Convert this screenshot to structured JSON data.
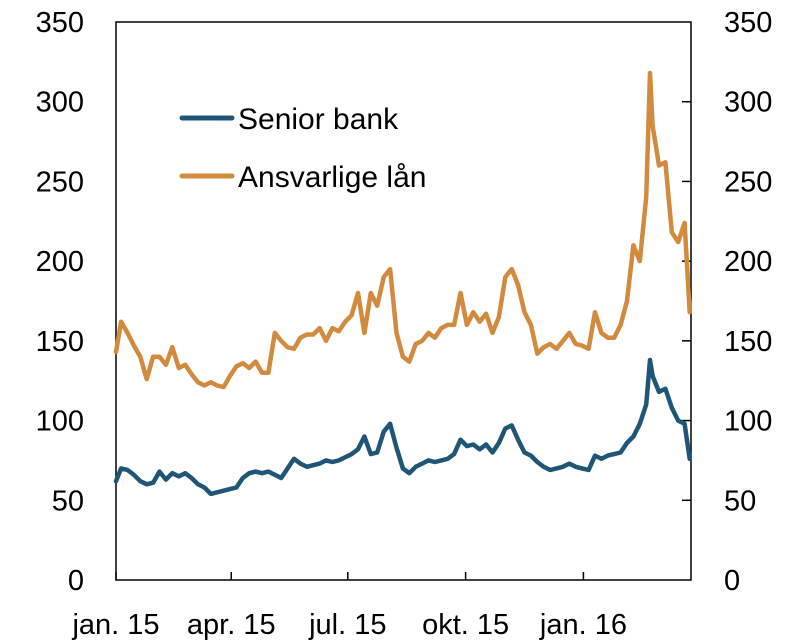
{
  "chart_data": {
    "type": "line",
    "title": "",
    "xlabel": "",
    "ylabel": "",
    "ylim": [
      0,
      350
    ],
    "yticks": [
      0,
      50,
      100,
      150,
      200,
      250,
      300,
      350
    ],
    "y2ticks": [
      0,
      50,
      100,
      150,
      200,
      250,
      300,
      350
    ],
    "xlim": [
      "2015-01-01",
      "2016-03-25"
    ],
    "xticks": [
      {
        "date": "2015-01-01",
        "label": "jan. 15"
      },
      {
        "date": "2015-04-01",
        "label": "apr. 15"
      },
      {
        "date": "2015-07-01",
        "label": "jul. 15"
      },
      {
        "date": "2015-10-01",
        "label": "okt. 15"
      },
      {
        "date": "2016-01-01",
        "label": "jan. 16"
      }
    ],
    "grid": false,
    "legend_position": "top-left",
    "series": [
      {
        "name": "Senior bank",
        "color": "#1f5576",
        "points": [
          [
            "2015-01-01",
            62
          ],
          [
            "2015-01-05",
            70
          ],
          [
            "2015-01-10",
            69
          ],
          [
            "2015-01-15",
            66
          ],
          [
            "2015-01-20",
            62
          ],
          [
            "2015-01-25",
            60
          ],
          [
            "2015-01-30",
            61
          ],
          [
            "2015-02-04",
            68
          ],
          [
            "2015-02-09",
            63
          ],
          [
            "2015-02-14",
            67
          ],
          [
            "2015-02-19",
            65
          ],
          [
            "2015-02-24",
            67
          ],
          [
            "2015-03-01",
            64
          ],
          [
            "2015-03-06",
            60
          ],
          [
            "2015-03-11",
            58
          ],
          [
            "2015-03-16",
            54
          ],
          [
            "2015-03-21",
            55
          ],
          [
            "2015-03-26",
            56
          ],
          [
            "2015-03-31",
            57
          ],
          [
            "2015-04-05",
            58
          ],
          [
            "2015-04-10",
            64
          ],
          [
            "2015-04-15",
            67
          ],
          [
            "2015-04-20",
            68
          ],
          [
            "2015-04-25",
            67
          ],
          [
            "2015-04-30",
            68
          ],
          [
            "2015-05-05",
            66
          ],
          [
            "2015-05-10",
            64
          ],
          [
            "2015-05-15",
            70
          ],
          [
            "2015-05-20",
            76
          ],
          [
            "2015-05-25",
            73
          ],
          [
            "2015-05-30",
            71
          ],
          [
            "2015-06-04",
            72
          ],
          [
            "2015-06-09",
            73
          ],
          [
            "2015-06-14",
            75
          ],
          [
            "2015-06-19",
            74
          ],
          [
            "2015-06-24",
            75
          ],
          [
            "2015-06-29",
            77
          ],
          [
            "2015-07-04",
            79
          ],
          [
            "2015-07-09",
            82
          ],
          [
            "2015-07-14",
            90
          ],
          [
            "2015-07-19",
            79
          ],
          [
            "2015-07-24",
            80
          ],
          [
            "2015-07-29",
            93
          ],
          [
            "2015-08-03",
            98
          ],
          [
            "2015-08-08",
            83
          ],
          [
            "2015-08-13",
            70
          ],
          [
            "2015-08-18",
            67
          ],
          [
            "2015-08-23",
            71
          ],
          [
            "2015-08-28",
            73
          ],
          [
            "2015-09-02",
            75
          ],
          [
            "2015-09-07",
            74
          ],
          [
            "2015-09-12",
            75
          ],
          [
            "2015-09-17",
            76
          ],
          [
            "2015-09-22",
            79
          ],
          [
            "2015-09-27",
            88
          ],
          [
            "2015-10-02",
            84
          ],
          [
            "2015-10-07",
            85
          ],
          [
            "2015-10-12",
            82
          ],
          [
            "2015-10-17",
            85
          ],
          [
            "2015-10-22",
            80
          ],
          [
            "2015-10-27",
            86
          ],
          [
            "2015-11-01",
            95
          ],
          [
            "2015-11-06",
            97
          ],
          [
            "2015-11-11",
            88
          ],
          [
            "2015-11-16",
            80
          ],
          [
            "2015-11-21",
            78
          ],
          [
            "2015-11-26",
            74
          ],
          [
            "2015-12-01",
            71
          ],
          [
            "2015-12-06",
            69
          ],
          [
            "2015-12-11",
            70
          ],
          [
            "2015-12-16",
            71
          ],
          [
            "2015-12-21",
            73
          ],
          [
            "2015-12-26",
            71
          ],
          [
            "2015-12-31",
            70
          ],
          [
            "2016-01-05",
            69
          ],
          [
            "2016-01-10",
            78
          ],
          [
            "2016-01-15",
            76
          ],
          [
            "2016-01-20",
            78
          ],
          [
            "2016-01-25",
            79
          ],
          [
            "2016-01-30",
            80
          ],
          [
            "2016-02-04",
            86
          ],
          [
            "2016-02-09",
            90
          ],
          [
            "2016-02-14",
            98
          ],
          [
            "2016-02-19",
            110
          ],
          [
            "2016-02-22",
            138
          ],
          [
            "2016-02-24",
            128
          ],
          [
            "2016-02-29",
            118
          ],
          [
            "2016-03-05",
            120
          ],
          [
            "2016-03-10",
            108
          ],
          [
            "2016-03-15",
            100
          ],
          [
            "2016-03-20",
            98
          ],
          [
            "2016-03-24",
            76
          ]
        ]
      },
      {
        "name": "Ansvarlige lån",
        "color": "#d18a3e",
        "points": [
          [
            "2015-01-01",
            143
          ],
          [
            "2015-01-05",
            162
          ],
          [
            "2015-01-10",
            155
          ],
          [
            "2015-01-15",
            147
          ],
          [
            "2015-01-20",
            140
          ],
          [
            "2015-01-25",
            126
          ],
          [
            "2015-01-30",
            140
          ],
          [
            "2015-02-04",
            140
          ],
          [
            "2015-02-09",
            135
          ],
          [
            "2015-02-14",
            146
          ],
          [
            "2015-02-19",
            133
          ],
          [
            "2015-02-24",
            135
          ],
          [
            "2015-03-01",
            129
          ],
          [
            "2015-03-06",
            124
          ],
          [
            "2015-03-11",
            122
          ],
          [
            "2015-03-16",
            124
          ],
          [
            "2015-03-21",
            122
          ],
          [
            "2015-03-26",
            121
          ],
          [
            "2015-03-31",
            128
          ],
          [
            "2015-04-05",
            134
          ],
          [
            "2015-04-10",
            136
          ],
          [
            "2015-04-15",
            133
          ],
          [
            "2015-04-20",
            137
          ],
          [
            "2015-04-25",
            130
          ],
          [
            "2015-04-30",
            130
          ],
          [
            "2015-05-05",
            155
          ],
          [
            "2015-05-10",
            150
          ],
          [
            "2015-05-15",
            146
          ],
          [
            "2015-05-20",
            145
          ],
          [
            "2015-05-25",
            152
          ],
          [
            "2015-05-30",
            154
          ],
          [
            "2015-06-04",
            154
          ],
          [
            "2015-06-09",
            158
          ],
          [
            "2015-06-14",
            150
          ],
          [
            "2015-06-19",
            158
          ],
          [
            "2015-06-24",
            156
          ],
          [
            "2015-06-29",
            162
          ],
          [
            "2015-07-04",
            166
          ],
          [
            "2015-07-09",
            180
          ],
          [
            "2015-07-14",
            155
          ],
          [
            "2015-07-19",
            180
          ],
          [
            "2015-07-24",
            172
          ],
          [
            "2015-07-29",
            190
          ],
          [
            "2015-08-03",
            195
          ],
          [
            "2015-08-08",
            155
          ],
          [
            "2015-08-13",
            140
          ],
          [
            "2015-08-18",
            137
          ],
          [
            "2015-08-23",
            148
          ],
          [
            "2015-08-28",
            150
          ],
          [
            "2015-09-02",
            155
          ],
          [
            "2015-09-07",
            152
          ],
          [
            "2015-09-12",
            158
          ],
          [
            "2015-09-17",
            160
          ],
          [
            "2015-09-22",
            160
          ],
          [
            "2015-09-27",
            180
          ],
          [
            "2015-10-02",
            160
          ],
          [
            "2015-10-07",
            168
          ],
          [
            "2015-10-12",
            162
          ],
          [
            "2015-10-17",
            167
          ],
          [
            "2015-10-22",
            155
          ],
          [
            "2015-10-27",
            165
          ],
          [
            "2015-11-01",
            190
          ],
          [
            "2015-11-06",
            195
          ],
          [
            "2015-11-11",
            185
          ],
          [
            "2015-11-16",
            168
          ],
          [
            "2015-11-21",
            160
          ],
          [
            "2015-11-26",
            142
          ],
          [
            "2015-12-01",
            146
          ],
          [
            "2015-12-06",
            148
          ],
          [
            "2015-12-11",
            145
          ],
          [
            "2015-12-16",
            150
          ],
          [
            "2015-12-21",
            155
          ],
          [
            "2015-12-26",
            148
          ],
          [
            "2015-12-31",
            147
          ],
          [
            "2016-01-05",
            145
          ],
          [
            "2016-01-10",
            168
          ],
          [
            "2016-01-15",
            155
          ],
          [
            "2016-01-20",
            152
          ],
          [
            "2016-01-25",
            152
          ],
          [
            "2016-01-30",
            160
          ],
          [
            "2016-02-04",
            175
          ],
          [
            "2016-02-09",
            210
          ],
          [
            "2016-02-14",
            200
          ],
          [
            "2016-02-19",
            240
          ],
          [
            "2016-02-22",
            318
          ],
          [
            "2016-02-24",
            285
          ],
          [
            "2016-02-29",
            260
          ],
          [
            "2016-03-05",
            262
          ],
          [
            "2016-03-10",
            218
          ],
          [
            "2016-03-15",
            212
          ],
          [
            "2016-03-20",
            224
          ],
          [
            "2016-03-24",
            168
          ]
        ]
      }
    ]
  }
}
